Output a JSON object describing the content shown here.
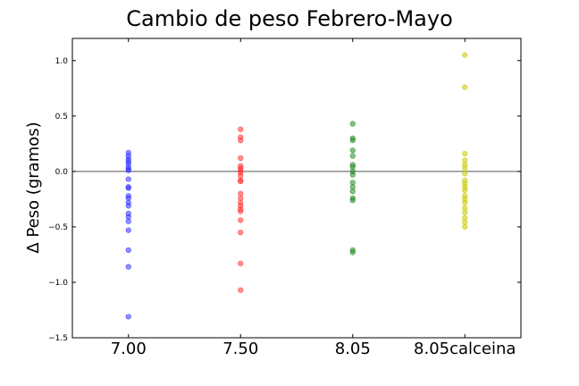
{
  "chart_data": {
    "type": "scatter",
    "title": "Cambio de peso Febrero-Mayo",
    "ylabel": "Δ Peso (gramos)",
    "xlabel": "",
    "categories": [
      "7.00",
      "7.50",
      "8.05",
      "8.05calceina"
    ],
    "ylim": [
      -1.5,
      1.2
    ],
    "yticks": [
      {
        "value": 1.0,
        "label": "1.0"
      },
      {
        "value": 0.5,
        "label": "0.5"
      },
      {
        "value": 0.0,
        "label": "0.0"
      },
      {
        "value": -0.5,
        "label": "−0.5"
      },
      {
        "value": -1.0,
        "label": "−1.0"
      },
      {
        "value": -1.5,
        "label": "−1.5"
      }
    ],
    "reference_line": 0.0,
    "grid": false,
    "series": [
      {
        "color": "#3333ff",
        "values": [
          0.17,
          0.14,
          0.11,
          0.09,
          0.07,
          0.04,
          0.02,
          0.01,
          -0.07,
          -0.14,
          -0.15,
          -0.22,
          -0.24,
          -0.28,
          -0.31,
          -0.38,
          -0.41,
          -0.45,
          -0.53,
          -0.71,
          -0.86,
          -1.31
        ]
      },
      {
        "color": "#ff3333",
        "values": [
          0.38,
          0.31,
          0.28,
          0.12,
          0.05,
          0.03,
          0.01,
          -0.01,
          -0.04,
          -0.08,
          -0.09,
          -0.2,
          -0.24,
          -0.28,
          -0.31,
          -0.34,
          -0.36,
          -0.44,
          -0.55,
          -0.83,
          -1.07
        ]
      },
      {
        "color": "#228b22",
        "values": [
          0.43,
          0.3,
          0.28,
          0.19,
          0.14,
          0.06,
          0.04,
          0.0,
          -0.03,
          -0.1,
          -0.14,
          -0.18,
          -0.24,
          -0.26,
          -0.71,
          -0.73
        ]
      },
      {
        "color": "#c8c800",
        "values": [
          1.05,
          0.76,
          0.16,
          0.1,
          0.06,
          0.03,
          -0.02,
          -0.08,
          -0.11,
          -0.14,
          -0.17,
          -0.22,
          -0.25,
          -0.28,
          -0.33,
          -0.37,
          -0.42,
          -0.46,
          -0.5
        ]
      }
    ]
  }
}
